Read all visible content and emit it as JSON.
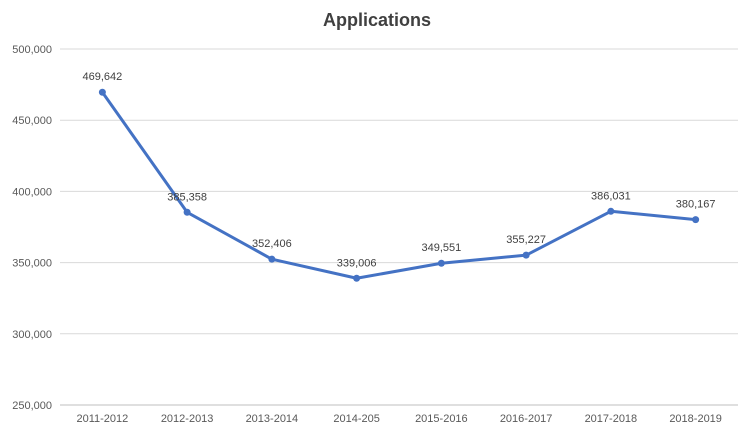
{
  "chart_data": {
    "type": "line",
    "title": "Applications",
    "xlabel": "",
    "ylabel": "",
    "categories": [
      "2011-2012",
      "2012-2013",
      "2013-2014",
      "2014-205",
      "2015-2016",
      "2016-2017",
      "2017-2018",
      "2018-2019"
    ],
    "values": [
      469642,
      385358,
      352406,
      339006,
      349551,
      355227,
      386031,
      380167
    ],
    "data_labels": [
      "469,642",
      "385,358",
      "352,406",
      "339,006",
      "349,551",
      "355,227",
      "386,031",
      "380,167"
    ],
    "ylim": [
      250000,
      500000
    ],
    "yticks": [
      250000,
      300000,
      350000,
      400000,
      450000,
      500000
    ],
    "ytick_labels": [
      "250,000",
      "300,000",
      "350,000",
      "400,000",
      "450,000",
      "500,000"
    ],
    "grid": true,
    "legend": "none",
    "color": "#4472c4"
  }
}
